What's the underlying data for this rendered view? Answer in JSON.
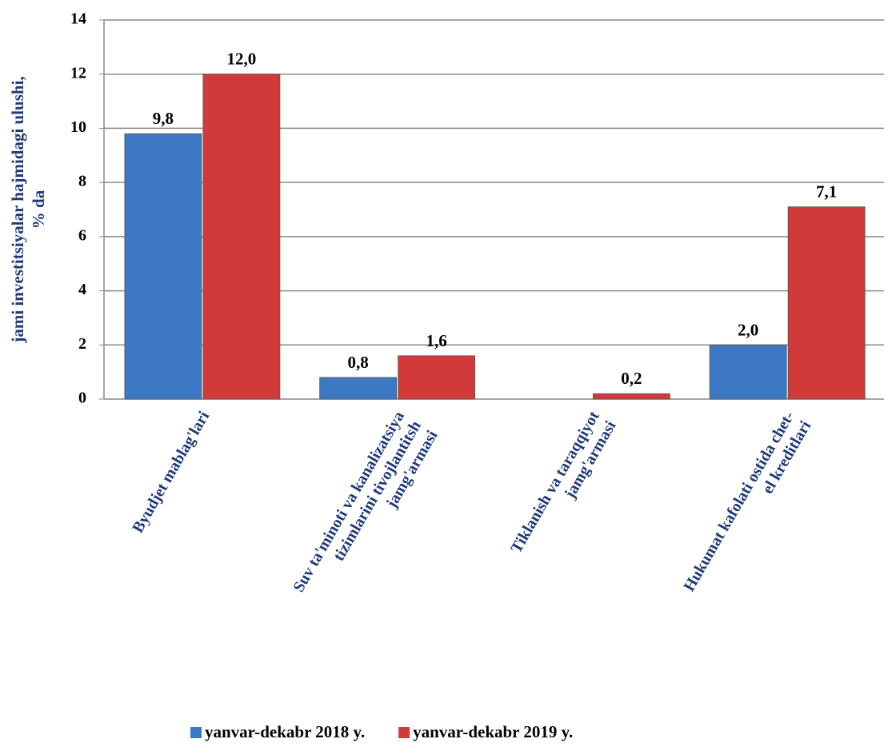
{
  "chart_data": {
    "type": "bar",
    "y_label": "jami investitsiyalar hajmidagi ulushi,\n% da",
    "categories": [
      "Byudjet mablag'lari",
      "Suv ta'minoti va kanalizatsiya\ntizimlarini tivojlantitsh\njamg'armasi",
      "Tiklanish va taraqqiyot\njamg'armasi",
      "Hukumat kafolati ostida  chet-\nel kreditlari"
    ],
    "series": [
      {
        "name": "yanvar-dekabr 2018 y.",
        "color": "#3c78c4",
        "values": [
          9.8,
          0.8,
          null,
          2.0
        ],
        "value_labels": [
          "9,8",
          "0,8",
          null,
          "2,0"
        ]
      },
      {
        "name": "yanvar-dekabr 2019 y.",
        "color": "#d23a3a",
        "values": [
          12.0,
          1.6,
          0.2,
          7.1
        ],
        "value_labels": [
          "12,0",
          "1,6",
          "0,2",
          "7,1"
        ]
      }
    ],
    "ylim": [
      0,
      14
    ],
    "yticks": [
      0,
      2,
      4,
      6,
      8,
      10,
      12,
      14
    ],
    "grid": true,
    "legend": "bottom"
  }
}
